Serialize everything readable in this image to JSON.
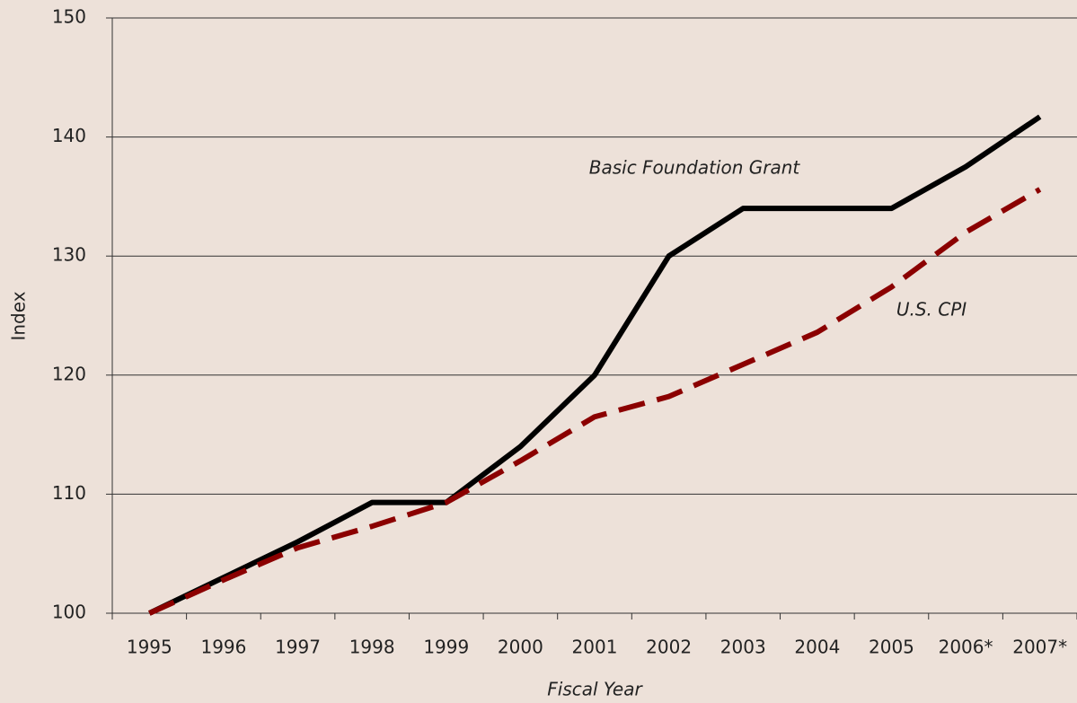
{
  "chart_data": {
    "type": "line",
    "x_label": "Fiscal Year",
    "y_label": "Index",
    "categories": [
      "1995",
      "1996",
      "1997",
      "1998",
      "1999",
      "2000",
      "2001",
      "2002",
      "2003",
      "2004",
      "2005",
      "2006*",
      "2007*"
    ],
    "series": [
      {
        "name": "Basic Foundation Grant",
        "color": "#000000",
        "style": "solid",
        "values": [
          100,
          103,
          106,
          109.3,
          109.3,
          114,
          120,
          130,
          134,
          134,
          134,
          137.5,
          141.7
        ]
      },
      {
        "name": "U.S. CPI",
        "color": "#8b0000",
        "style": "dashed",
        "values": [
          100,
          102.8,
          105.5,
          107.3,
          109.3,
          112.8,
          116.5,
          118.2,
          120.9,
          123.6,
          127.4,
          132,
          135.6
        ]
      }
    ],
    "ylim": [
      100,
      150
    ],
    "yticks": [
      100,
      110,
      120,
      130,
      140,
      150
    ],
    "grid": true
  }
}
